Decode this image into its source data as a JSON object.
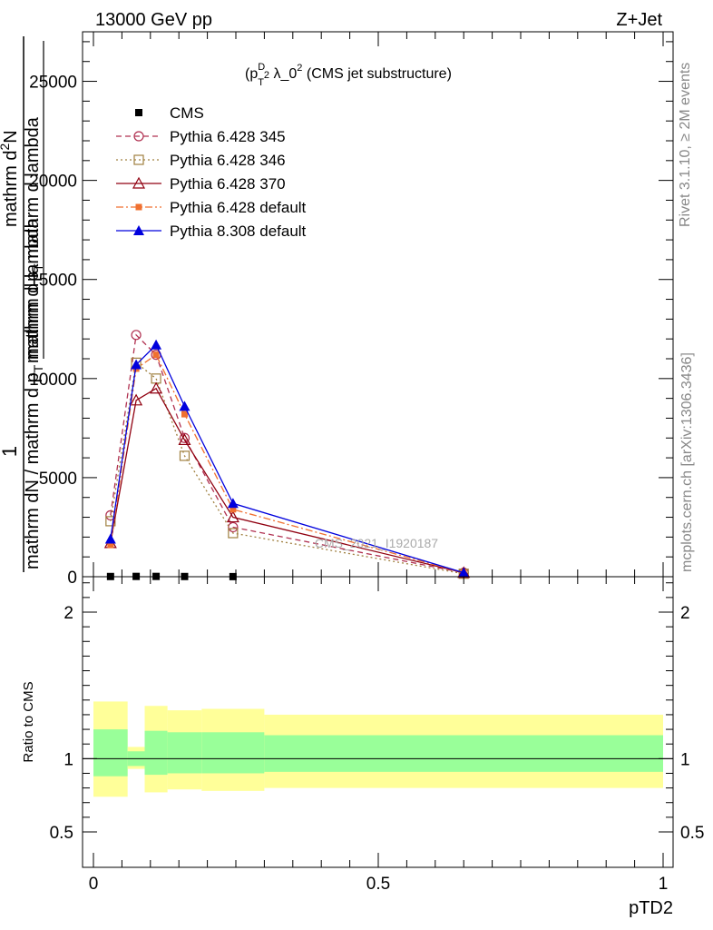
{
  "header": {
    "left_title": "13000 GeV pp",
    "right_title": "Z+Jet"
  },
  "side_labels": {
    "rivet": "Rivet 3.1.10, ≥ 2M events",
    "mcplots": "mcplots.cern.ch [arXiv:1306.3436]"
  },
  "watermark": "CMS_2021_I1920187",
  "chart_data": [
    {
      "type": "line",
      "title": "(p_T^D)^2 λ_0^2 (CMS jet substructure)",
      "title_parts": {
        "a": "(p",
        "b": "D",
        "c": "T",
        "d": "2",
        "e": " λ_0",
        "f": "2",
        "g": " (CMS jet substructure)"
      },
      "ylabel_parts": {
        "one": "1",
        "den_a": "mathrm dN / mathrm d p",
        "den_sub": "T",
        "den_b": " mathrm d lambda",
        "num_a": "mathrm d",
        "num_sup": "2",
        "num_b": "N",
        "num_den_a": "mathrm d p",
        "num_den_sub": "T",
        "num_den_b": " mathrm d lambda"
      },
      "xlim": [
        0,
        1
      ],
      "ylim": [
        0,
        27500
      ],
      "y_ticks": [
        "0",
        "5000",
        "10000",
        "15000",
        "20000",
        "25000"
      ],
      "y_tick_values": [
        0,
        5000,
        10000,
        15000,
        20000,
        25000
      ],
      "legend_position": "top-left",
      "series": [
        {
          "name": "CMS",
          "color": "#000000",
          "marker": "square-filled",
          "line": "none",
          "x": [
            0.03,
            0.075,
            0.11,
            0.16,
            0.245
          ],
          "y": [
            10,
            15,
            15,
            10,
            5
          ]
        },
        {
          "name": "Pythia 6.428 345",
          "color": "#b03050",
          "marker": "circle-open",
          "line": "dashed",
          "x": [
            0.03,
            0.075,
            0.11,
            0.16,
            0.245,
            0.65
          ],
          "y": [
            3100,
            12200,
            11200,
            7000,
            2500,
            200
          ]
        },
        {
          "name": "Pythia 6.428 346",
          "color": "#a08040",
          "marker": "square-open",
          "line": "dotted",
          "x": [
            0.03,
            0.075,
            0.11,
            0.16,
            0.245,
            0.65
          ],
          "y": [
            2800,
            10800,
            10000,
            6100,
            2200,
            150
          ]
        },
        {
          "name": "Pythia 6.428 370",
          "color": "#900010",
          "marker": "triangle-open",
          "line": "solid",
          "x": [
            0.03,
            0.075,
            0.11,
            0.16,
            0.245,
            0.65
          ],
          "y": [
            1700,
            8900,
            9500,
            6900,
            3000,
            200
          ]
        },
        {
          "name": "Pythia 6.428 default",
          "color": "#f07030",
          "marker": "square-filled-small",
          "line": "dashdot",
          "x": [
            0.03,
            0.075,
            0.11,
            0.16,
            0.245,
            0.65
          ],
          "y": [
            1600,
            10500,
            11200,
            8200,
            3400,
            200
          ]
        },
        {
          "name": "Pythia 8.308 default",
          "color": "#0000dd",
          "marker": "triangle-filled",
          "line": "solid",
          "x": [
            0.03,
            0.075,
            0.11,
            0.16,
            0.245,
            0.65
          ],
          "y": [
            1900,
            10700,
            11700,
            8600,
            3700,
            200
          ]
        }
      ]
    },
    {
      "type": "area",
      "ylabel": "Ratio to CMS",
      "xlabel": "pTD2",
      "xlim": [
        0,
        1
      ],
      "ylim": [
        0.4,
        2.25
      ],
      "y_ticks": [
        "0.5",
        "1",
        "2"
      ],
      "y_tick_values": [
        0.5,
        1,
        2
      ],
      "x_ticks": [
        "0",
        "0.5",
        "1"
      ],
      "x_tick_values": [
        0,
        0.5,
        1
      ],
      "band_colors": {
        "outer": "#ffff99",
        "inner": "#99ff99"
      },
      "bins": [
        {
          "x0": 0.0,
          "x1": 0.06,
          "outer": [
            0.74,
            1.39
          ],
          "inner": [
            0.88,
            1.2
          ]
        },
        {
          "x0": 0.06,
          "x1": 0.09,
          "outer": [
            0.93,
            1.08
          ],
          "inner": [
            0.95,
            1.05
          ]
        },
        {
          "x0": 0.09,
          "x1": 0.13,
          "outer": [
            0.77,
            1.36
          ],
          "inner": [
            0.89,
            1.19
          ]
        },
        {
          "x0": 0.13,
          "x1": 0.19,
          "outer": [
            0.79,
            1.33
          ],
          "inner": [
            0.9,
            1.18
          ]
        },
        {
          "x0": 0.19,
          "x1": 0.3,
          "outer": [
            0.78,
            1.34
          ],
          "inner": [
            0.9,
            1.18
          ]
        },
        {
          "x0": 0.3,
          "x1": 1.0,
          "outer": [
            0.8,
            1.3
          ],
          "inner": [
            0.91,
            1.16
          ]
        }
      ],
      "reference_line": 1
    }
  ]
}
